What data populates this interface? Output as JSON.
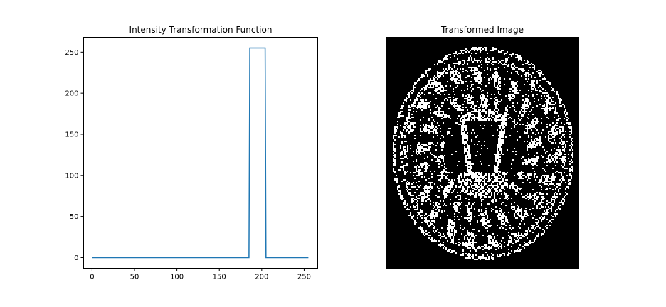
{
  "chart_data": [
    {
      "type": "line",
      "title": "Intensity Transformation Function",
      "xlabel": "",
      "ylabel": "",
      "xlim": [
        -10,
        266
      ],
      "ylim": [
        -13,
        268
      ],
      "xticks": [
        0,
        50,
        100,
        150,
        200,
        250
      ],
      "yticks": [
        0,
        50,
        100,
        150,
        200,
        250
      ],
      "grid": false,
      "series": [
        {
          "color": "#1f77b4",
          "x": [
            0,
            185,
            186,
            204,
            205,
            255
          ],
          "y": [
            0,
            0,
            255,
            255,
            0,
            0
          ]
        }
      ]
    },
    {
      "type": "image",
      "title": "Transformed Image",
      "colormap": "binary (black background, white pixels)",
      "content": "thresholded axial brain MRI slice",
      "axes": "off"
    }
  ]
}
